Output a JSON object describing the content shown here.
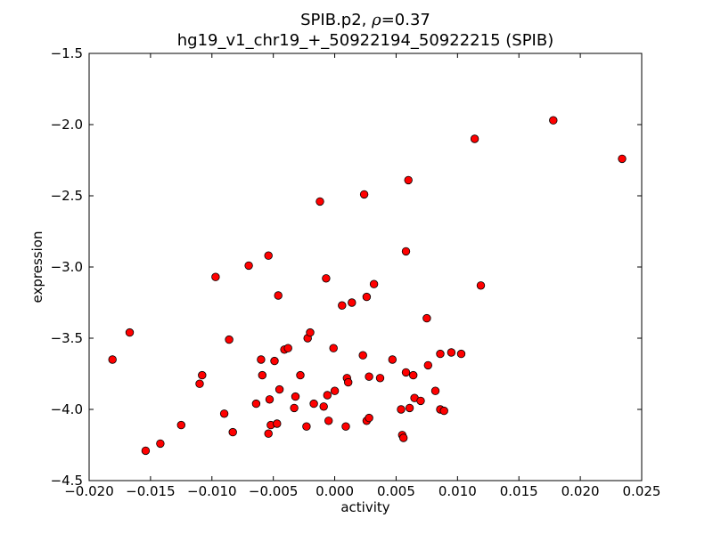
{
  "chart_data": {
    "type": "scatter",
    "title_prefix": "SPIB.p2, ",
    "title_rho_symbol": "ρ",
    "title_rho_eq": "=0.37",
    "subtitle": "hg19_v1_chr19_+_50922194_50922215 (SPIB)",
    "xlabel": "activity",
    "ylabel": "expression",
    "xlim": [
      -0.02,
      0.025
    ],
    "ylim": [
      -4.5,
      -1.5
    ],
    "xticks": [
      "−0.020",
      "−0.015",
      "−0.010",
      "−0.005",
      "0.000",
      "0.005",
      "0.010",
      "0.015",
      "0.020",
      "0.025"
    ],
    "yticks": [
      "−1.5",
      "−2.0",
      "−2.5",
      "−3.0",
      "−3.5",
      "−4.0",
      "−4.5"
    ],
    "grid": false,
    "marker_color": "#ff0000",
    "marker_edge": "#000000",
    "points": [
      [
        -0.0181,
        -3.65
      ],
      [
        -0.0167,
        -3.46
      ],
      [
        -0.0154,
        -4.29
      ],
      [
        -0.0142,
        -4.24
      ],
      [
        -0.0125,
        -4.11
      ],
      [
        -0.011,
        -3.82
      ],
      [
        -0.0108,
        -3.76
      ],
      [
        -0.0097,
        -3.07
      ],
      [
        -0.009,
        -4.03
      ],
      [
        -0.0086,
        -3.51
      ],
      [
        -0.0083,
        -4.16
      ],
      [
        -0.007,
        -2.99
      ],
      [
        -0.0064,
        -3.96
      ],
      [
        -0.006,
        -3.65
      ],
      [
        -0.0059,
        -3.76
      ],
      [
        -0.0054,
        -2.92
      ],
      [
        -0.0054,
        -4.17
      ],
      [
        -0.0053,
        -3.93
      ],
      [
        -0.0052,
        -4.11
      ],
      [
        -0.0049,
        -3.66
      ],
      [
        -0.0047,
        -4.1
      ],
      [
        -0.0046,
        -3.2
      ],
      [
        -0.0045,
        -3.86
      ],
      [
        -0.0041,
        -3.58
      ],
      [
        -0.0038,
        -3.57
      ],
      [
        -0.0033,
        -3.99
      ],
      [
        -0.0032,
        -3.91
      ],
      [
        -0.0028,
        -3.76
      ],
      [
        -0.0023,
        -4.12
      ],
      [
        -0.0022,
        -3.5
      ],
      [
        -0.002,
        -3.46
      ],
      [
        -0.0017,
        -3.96
      ],
      [
        -0.0012,
        -2.54
      ],
      [
        -0.0009,
        -3.98
      ],
      [
        -0.0007,
        -3.08
      ],
      [
        -0.0006,
        -3.9
      ],
      [
        -0.0005,
        -4.08
      ],
      [
        -0.0001,
        -3.57
      ],
      [
        0.0,
        -3.87
      ],
      [
        0.0006,
        -3.27
      ],
      [
        0.0009,
        -4.12
      ],
      [
        0.001,
        -3.78
      ],
      [
        0.0011,
        -3.81
      ],
      [
        0.0014,
        -3.25
      ],
      [
        0.0023,
        -3.62
      ],
      [
        0.0024,
        -2.49
      ],
      [
        0.0026,
        -3.21
      ],
      [
        0.0026,
        -4.08
      ],
      [
        0.0028,
        -3.77
      ],
      [
        0.0028,
        -4.06
      ],
      [
        0.0032,
        -3.12
      ],
      [
        0.0037,
        -3.78
      ],
      [
        0.0047,
        -3.65
      ],
      [
        0.0054,
        -4.0
      ],
      [
        0.0055,
        -4.18
      ],
      [
        0.0056,
        -4.2
      ],
      [
        0.0058,
        -2.89
      ],
      [
        0.0058,
        -3.74
      ],
      [
        0.006,
        -2.39
      ],
      [
        0.0061,
        -3.99
      ],
      [
        0.0064,
        -3.76
      ],
      [
        0.0065,
        -3.92
      ],
      [
        0.007,
        -3.94
      ],
      [
        0.0075,
        -3.36
      ],
      [
        0.0076,
        -3.69
      ],
      [
        0.0082,
        -3.87
      ],
      [
        0.0086,
        -4.0
      ],
      [
        0.0086,
        -3.61
      ],
      [
        0.0089,
        -4.01
      ],
      [
        0.0095,
        -3.6
      ],
      [
        0.0103,
        -3.61
      ],
      [
        0.0114,
        -2.1
      ],
      [
        0.0119,
        -3.13
      ],
      [
        0.0178,
        -1.97
      ],
      [
        0.0234,
        -2.24
      ]
    ]
  }
}
